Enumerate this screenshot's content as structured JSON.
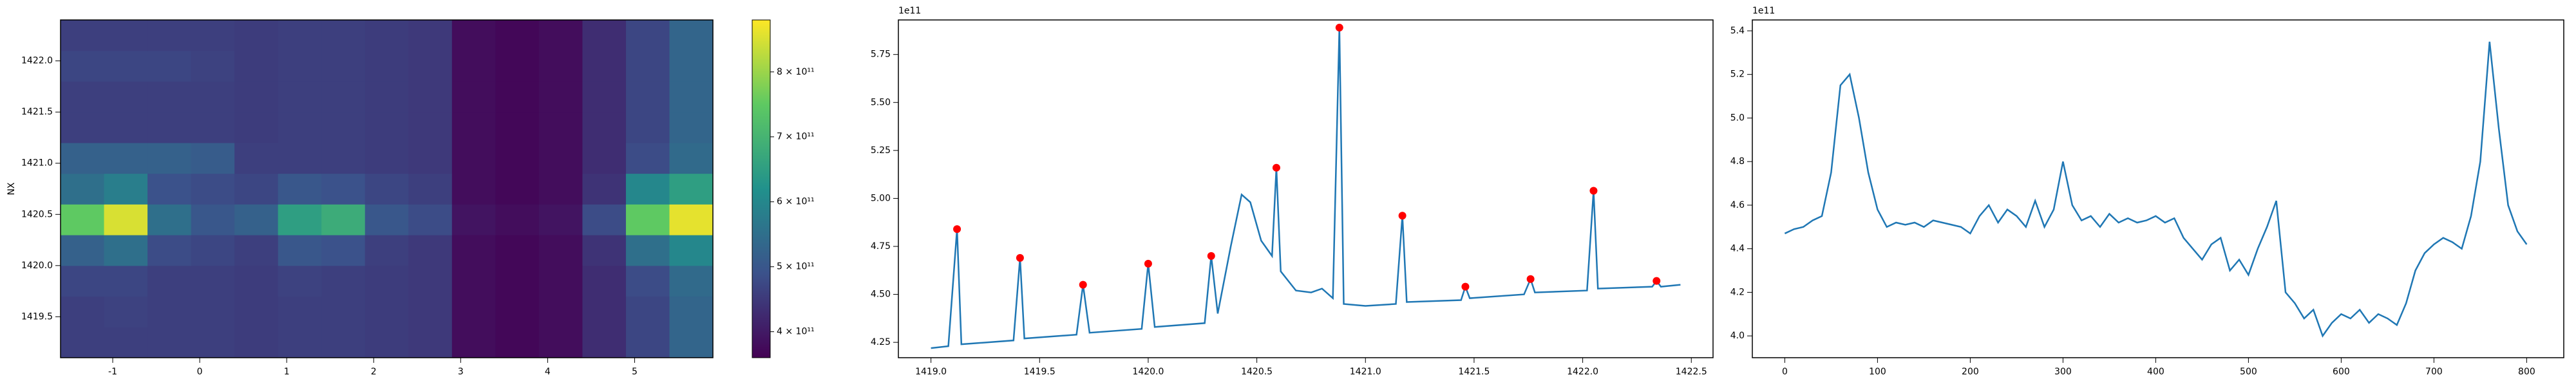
{
  "chart_data": [
    {
      "type": "heatmap",
      "ylabel": "NX",
      "x": [
        -1.35,
        -0.85,
        -0.35,
        0.15,
        0.65,
        1.15,
        1.65,
        2.15,
        2.65,
        3.15,
        3.65,
        4.15,
        4.65,
        5.15,
        5.65
      ],
      "y": [
        1419.25,
        1419.55,
        1419.85,
        1420.15,
        1420.45,
        1420.75,
        1421.05,
        1421.35,
        1421.65,
        1421.95,
        1422.25
      ],
      "z": [
        [
          460000000000.0,
          460000000000.0,
          460000000000.0,
          460000000000.0,
          455000000000.0,
          460000000000.0,
          460000000000.0,
          455000000000.0,
          450000000000.0,
          380000000000.0,
          370000000000.0,
          380000000000.0,
          430000000000.0,
          470000000000.0,
          530000000000.0
        ],
        [
          460000000000.0,
          465000000000.0,
          460000000000.0,
          460000000000.0,
          455000000000.0,
          460000000000.0,
          460000000000.0,
          455000000000.0,
          450000000000.0,
          380000000000.0,
          370000000000.0,
          380000000000.0,
          430000000000.0,
          470000000000.0,
          530000000000.0
        ],
        [
          470000000000.0,
          470000000000.0,
          460000000000.0,
          460000000000.0,
          455000000000.0,
          465000000000.0,
          460000000000.0,
          455000000000.0,
          450000000000.0,
          380000000000.0,
          370000000000.0,
          380000000000.0,
          430000000000.0,
          480000000000.0,
          540000000000.0
        ],
        [
          520000000000.0,
          550000000000.0,
          480000000000.0,
          470000000000.0,
          460000000000.0,
          500000000000.0,
          490000000000.0,
          460000000000.0,
          450000000000.0,
          380000000000.0,
          370000000000.0,
          380000000000.0,
          440000000000.0,
          550000000000.0,
          600000000000.0
        ],
        [
          750000000000.0,
          850000000000.0,
          550000000000.0,
          500000000000.0,
          520000000000.0,
          650000000000.0,
          680000000000.0,
          500000000000.0,
          480000000000.0,
          390000000000.0,
          380000000000.0,
          390000000000.0,
          480000000000.0,
          750000000000.0,
          860000000000.0
        ],
        [
          550000000000.0,
          580000000000.0,
          490000000000.0,
          480000000000.0,
          470000000000.0,
          500000000000.0,
          490000000000.0,
          470000000000.0,
          460000000000.0,
          380000000000.0,
          370000000000.0,
          380000000000.0,
          440000000000.0,
          600000000000.0,
          650000000000.0
        ],
        [
          520000000000.0,
          520000000000.0,
          520000000000.0,
          510000000000.0,
          460000000000.0,
          460000000000.0,
          460000000000.0,
          455000000000.0,
          450000000000.0,
          380000000000.0,
          370000000000.0,
          380000000000.0,
          430000000000.0,
          480000000000.0,
          540000000000.0
        ],
        [
          460000000000.0,
          460000000000.0,
          460000000000.0,
          460000000000.0,
          455000000000.0,
          460000000000.0,
          460000000000.0,
          455000000000.0,
          450000000000.0,
          380000000000.0,
          370000000000.0,
          380000000000.0,
          430000000000.0,
          470000000000.0,
          530000000000.0
        ],
        [
          460000000000.0,
          460000000000.0,
          460000000000.0,
          460000000000.0,
          455000000000.0,
          460000000000.0,
          460000000000.0,
          455000000000.0,
          450000000000.0,
          380000000000.0,
          370000000000.0,
          380000000000.0,
          430000000000.0,
          470000000000.0,
          530000000000.0
        ],
        [
          470000000000.0,
          470000000000.0,
          470000000000.0,
          465000000000.0,
          455000000000.0,
          460000000000.0,
          460000000000.0,
          455000000000.0,
          450000000000.0,
          380000000000.0,
          370000000000.0,
          380000000000.0,
          430000000000.0,
          470000000000.0,
          530000000000.0
        ],
        [
          460000000000.0,
          460000000000.0,
          460000000000.0,
          460000000000.0,
          455000000000.0,
          460000000000.0,
          460000000000.0,
          455000000000.0,
          450000000000.0,
          380000000000.0,
          370000000000.0,
          380000000000.0,
          430000000000.0,
          470000000000.0,
          530000000000.0
        ]
      ],
      "xlim": [
        -1.6,
        5.9
      ],
      "ylim": [
        1419.1,
        1422.4
      ],
      "xticks": [
        -1,
        0,
        1,
        2,
        3,
        4,
        5
      ],
      "yticks": [
        1419.5,
        {
          "value": 1420,
          "label": "1420.0"
        },
        1420.5,
        {
          "value": 1421,
          "label": "1421.0"
        },
        1421.5,
        {
          "value": 1422,
          "label": "1422.0"
        }
      ],
      "zlim": [
        360000000000.0,
        880000000000.0
      ],
      "colorbar_ticks": [
        {
          "value": 400000000000.0,
          "label": "4 × 10¹¹"
        },
        {
          "value": 500000000000.0,
          "label": "5 × 10¹¹"
        },
        {
          "value": 600000000000.0,
          "label": "6 × 10¹¹"
        },
        {
          "value": 700000000000.0,
          "label": "7 × 10¹¹"
        },
        {
          "value": 800000000000.0,
          "label": "8 × 10¹¹"
        }
      ],
      "colormap": "viridis"
    },
    {
      "type": "line",
      "y_offset_label": "1e11",
      "series": [
        {
          "kind": "line",
          "color": "#1f77b4",
          "x": [
            1419.0,
            1419.08,
            1419.12,
            1419.14,
            1419.38,
            1419.41,
            1419.43,
            1419.67,
            1419.7,
            1419.73,
            1419.97,
            1420.0,
            1420.03,
            1420.26,
            1420.29,
            1420.32,
            1420.38,
            1420.43,
            1420.47,
            1420.52,
            1420.57,
            1420.59,
            1420.61,
            1420.68,
            1420.75,
            1420.8,
            1420.85,
            1420.88,
            1420.9,
            1421.0,
            1421.14,
            1421.17,
            1421.19,
            1421.44,
            1421.46,
            1421.48,
            1421.73,
            1421.76,
            1421.78,
            1422.02,
            1422.05,
            1422.07,
            1422.32,
            1422.34,
            1422.36,
            1422.45
          ],
          "y": [
            4.22,
            4.23,
            4.84,
            4.24,
            4.26,
            4.69,
            4.27,
            4.29,
            4.55,
            4.3,
            4.32,
            4.66,
            4.33,
            4.35,
            4.7,
            4.4,
            4.75,
            5.02,
            4.98,
            4.78,
            4.7,
            5.16,
            4.62,
            4.52,
            4.51,
            4.53,
            4.48,
            5.89,
            4.45,
            4.44,
            4.45,
            4.91,
            4.46,
            4.47,
            4.54,
            4.48,
            4.5,
            4.58,
            4.51,
            4.52,
            5.04,
            4.53,
            4.54,
            4.57,
            4.54,
            4.55
          ]
        },
        {
          "kind": "scatter",
          "color": "#ff0000",
          "x": [
            1419.12,
            1419.41,
            1419.7,
            1420.0,
            1420.29,
            1420.59,
            1420.88,
            1421.17,
            1421.46,
            1421.76,
            1422.05,
            1422.34
          ],
          "y": [
            4.84,
            4.69,
            4.55,
            4.66,
            4.7,
            5.16,
            5.89,
            4.91,
            4.54,
            4.58,
            5.04,
            4.57
          ]
        }
      ],
      "xlim": [
        1418.85,
        1422.6
      ],
      "ylim": [
        4.17,
        5.93
      ],
      "xticks": [
        {
          "value": 1419,
          "label": "1419.0"
        },
        1419.5,
        {
          "value": 1420,
          "label": "1420.0"
        },
        1420.5,
        {
          "value": 1421,
          "label": "1421.0"
        },
        1421.5,
        {
          "value": 1422,
          "label": "1422.0"
        },
        1422.5
      ],
      "yticks": [
        4.25,
        {
          "value": 4.5,
          "label": "4.50"
        },
        4.75,
        {
          "value": 5,
          "label": "5.00"
        },
        5.25,
        {
          "value": 5.5,
          "label": "5.50"
        },
        5.75
      ]
    },
    {
      "type": "line",
      "y_offset_label": "1e11",
      "series": [
        {
          "kind": "line",
          "color": "#1f77b4",
          "x": [
            0,
            10,
            20,
            30,
            40,
            50,
            60,
            70,
            80,
            90,
            100,
            110,
            120,
            130,
            140,
            150,
            160,
            170,
            180,
            190,
            200,
            210,
            220,
            230,
            240,
            250,
            260,
            270,
            280,
            290,
            300,
            310,
            320,
            330,
            340,
            350,
            360,
            370,
            380,
            390,
            400,
            410,
            420,
            430,
            440,
            450,
            460,
            470,
            480,
            490,
            500,
            510,
            520,
            530,
            540,
            550,
            560,
            570,
            580,
            590,
            600,
            610,
            620,
            630,
            640,
            650,
            660,
            670,
            680,
            690,
            700,
            710,
            720,
            730,
            740,
            750,
            760,
            770,
            780,
            790,
            800
          ],
          "y": [
            4.47,
            4.49,
            4.5,
            4.53,
            4.55,
            4.75,
            5.15,
            5.2,
            5.0,
            4.75,
            4.58,
            4.5,
            4.52,
            4.51,
            4.52,
            4.5,
            4.53,
            4.52,
            4.51,
            4.5,
            4.47,
            4.55,
            4.6,
            4.52,
            4.58,
            4.55,
            4.5,
            4.62,
            4.5,
            4.58,
            4.8,
            4.6,
            4.53,
            4.55,
            4.5,
            4.56,
            4.52,
            4.54,
            4.52,
            4.53,
            4.55,
            4.52,
            4.54,
            4.45,
            4.4,
            4.35,
            4.42,
            4.45,
            4.3,
            4.35,
            4.28,
            4.4,
            4.5,
            4.62,
            4.2,
            4.15,
            4.08,
            4.12,
            4.0,
            4.06,
            4.1,
            4.08,
            4.12,
            4.06,
            4.1,
            4.08,
            4.05,
            4.15,
            4.3,
            4.38,
            4.42,
            4.45,
            4.43,
            4.4,
            4.55,
            4.8,
            5.35,
            4.95,
            4.6,
            4.48,
            4.42
          ]
        }
      ],
      "xlim": [
        -35,
        840
      ],
      "ylim": [
        3.9,
        5.45
      ],
      "xticks": [
        0,
        100,
        200,
        300,
        400,
        500,
        600,
        700,
        800
      ],
      "yticks": [
        {
          "value": 4,
          "label": "4.0"
        },
        4.2,
        4.4,
        4.6,
        4.8,
        {
          "value": 5,
          "label": "5.0"
        },
        5.2,
        5.4
      ]
    }
  ]
}
